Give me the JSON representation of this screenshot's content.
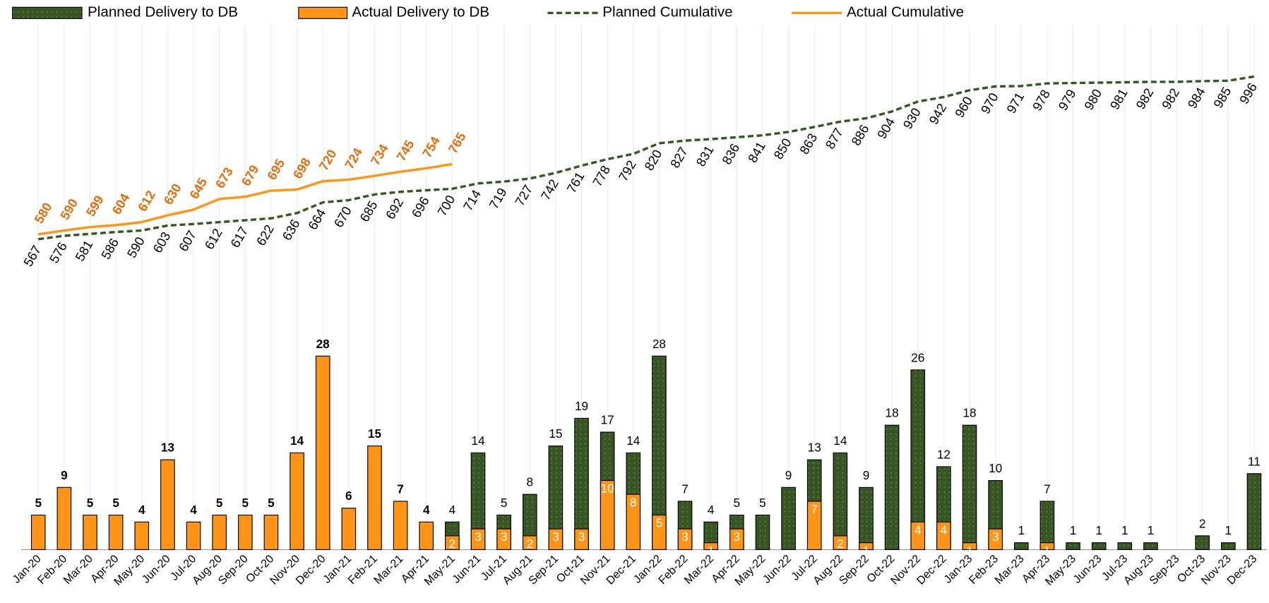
{
  "chart_data": {
    "type": "bar",
    "categories": [
      "Jan-20",
      "Feb-20",
      "Mar-20",
      "Apr-20",
      "May-20",
      "Jun-20",
      "Jul-20",
      "Aug-20",
      "Sep-20",
      "Oct-20",
      "Nov-20",
      "Dec-20",
      "Jan-21",
      "Feb-21",
      "Mar-21",
      "Apr-21",
      "May-21",
      "Jun-21",
      "Jul-21",
      "Aug-21",
      "Sep-21",
      "Oct-21",
      "Nov-21",
      "Dec-21",
      "Jan-22",
      "Feb-22",
      "Mar-22",
      "Apr-22",
      "May-22",
      "Jun-22",
      "Jul-22",
      "Aug-22",
      "Sep-22",
      "Oct-22",
      "Nov-22",
      "Dec-22",
      "Jan-23",
      "Feb-23",
      "Mar-23",
      "Apr-23",
      "May-23",
      "Jun-23",
      "Jul-23",
      "Aug-23",
      "Sep-23",
      "Oct-23",
      "Nov-23",
      "Dec-23"
    ],
    "series": [
      {
        "name": "Planned Delivery to DB",
        "type": "bar",
        "color": "#375623",
        "values": [
          5,
          9,
          5,
          5,
          4,
          13,
          4,
          5,
          5,
          5,
          14,
          28,
          6,
          15,
          7,
          4,
          4,
          14,
          5,
          8,
          15,
          19,
          17,
          14,
          28,
          7,
          4,
          5,
          5,
          9,
          13,
          14,
          9,
          18,
          26,
          12,
          18,
          10,
          1,
          7,
          1,
          1,
          1,
          1,
          null,
          2,
          1,
          11
        ]
      },
      {
        "name": "Actual Delivery to DB",
        "type": "bar",
        "color": "#ff9416",
        "values": [
          5,
          9,
          5,
          5,
          4,
          13,
          4,
          5,
          5,
          5,
          14,
          28,
          6,
          15,
          7,
          4,
          2,
          3,
          3,
          2,
          3,
          3,
          10,
          8,
          5,
          3,
          1,
          3,
          null,
          null,
          7,
          2,
          1,
          null,
          4,
          4,
          1,
          3,
          null,
          1,
          null,
          null,
          null,
          null,
          null,
          null,
          null,
          null
        ]
      },
      {
        "name": "Planned Cumulative",
        "type": "line",
        "style": "dashed",
        "axis": "y2",
        "color": "#375623",
        "label_color": "#000000",
        "values": [
          567,
          576,
          581,
          586,
          590,
          603,
          607,
          612,
          617,
          622,
          636,
          664,
          670,
          685,
          692,
          696,
          700,
          714,
          719,
          727,
          742,
          761,
          778,
          792,
          820,
          827,
          831,
          836,
          841,
          850,
          863,
          877,
          886,
          904,
          930,
          942,
          960,
          970,
          971,
          978,
          979,
          980,
          981,
          982,
          982,
          984,
          985,
          996
        ]
      },
      {
        "name": "Actual Cumulative",
        "type": "line",
        "style": "solid",
        "axis": "y2",
        "color": "#ff9416",
        "label_color": "#e46c0a",
        "values": [
          580,
          590,
          599,
          604,
          612,
          630,
          645,
          673,
          679,
          695,
          698,
          720,
          724,
          734,
          745,
          754,
          765,
          null,
          null,
          null,
          null,
          null,
          null,
          null,
          null,
          null,
          null,
          null,
          null,
          null,
          null,
          null,
          null,
          null,
          null,
          null,
          null,
          null,
          null,
          null,
          null,
          null,
          null,
          null,
          null,
          null,
          null,
          null
        ]
      }
    ],
    "ylim": [
      0,
      76
    ],
    "y2lim": [
      -252,
      1134
    ],
    "grid": "x",
    "legend": "top"
  }
}
